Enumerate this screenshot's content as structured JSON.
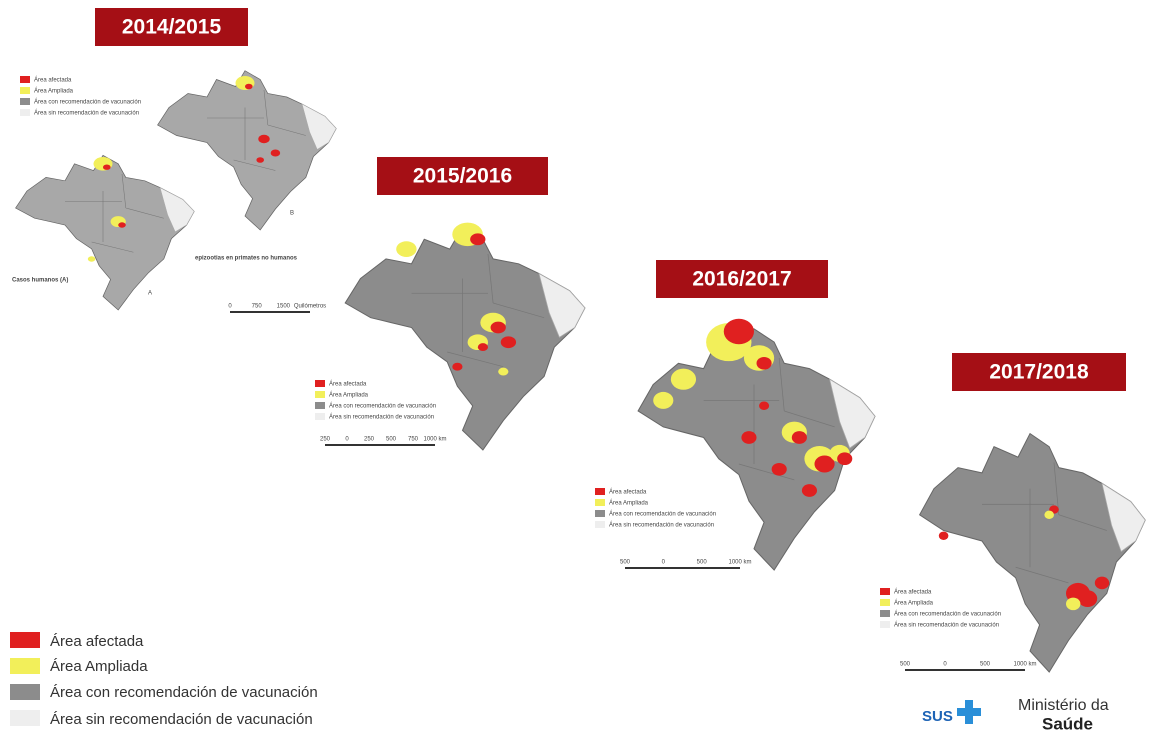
{
  "legend": [
    "Área afectada",
    "Área Ampliada",
    "Área con recomendación de vacunación",
    "Área sin recomendación de vacunación"
  ],
  "panels": [
    {
      "title": "2014/2015",
      "map_labels": [
        "Casos humanos (A)",
        "A",
        "epizootias en primates no humanos",
        "B"
      ],
      "scale": [
        "0",
        "750",
        "1500",
        "Quilómetros"
      ]
    },
    {
      "title": "2015/2016",
      "scale": [
        "250",
        "0",
        "250",
        "500",
        "750",
        "1000 km"
      ]
    },
    {
      "title": "2016/2017",
      "scale": [
        "500",
        "0",
        "500",
        "1000 km"
      ]
    },
    {
      "title": "2017/2018",
      "scale": [
        "500",
        "0",
        "500",
        "1000 km"
      ]
    }
  ],
  "logo": {
    "sus": "SUS",
    "ministry": "Ministério da",
    "health": "Saúde"
  }
}
